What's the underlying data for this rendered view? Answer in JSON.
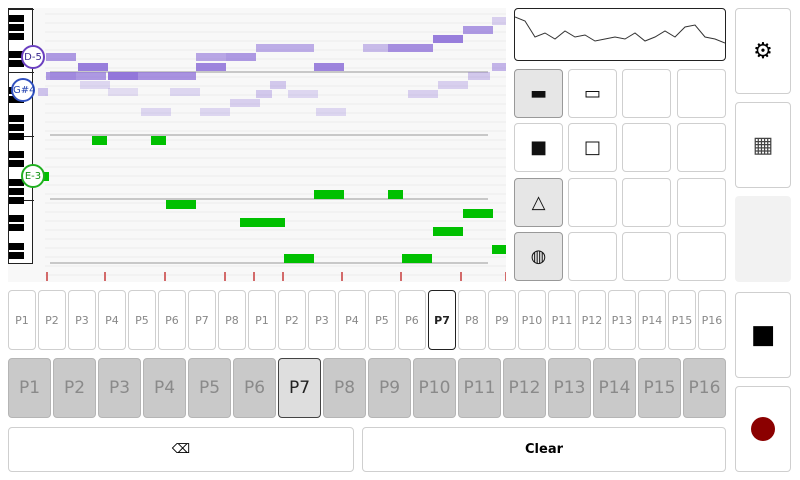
{
  "note_labels": {
    "d5": "D-5",
    "gsharp4": "G#4",
    "e3": "E-3"
  },
  "small_patterns": [
    "P1",
    "P2",
    "P3",
    "P4",
    "P5",
    "P6",
    "P7",
    "P8",
    "P1",
    "P2",
    "P3",
    "P4",
    "P5",
    "P6",
    "P7",
    "P8",
    "P9",
    "P10",
    "P11",
    "P12",
    "P13",
    "P14",
    "P15",
    "P16"
  ],
  "small_active_index": 14,
  "big_patterns": [
    "P1",
    "P2",
    "P3",
    "P4",
    "P5",
    "P6",
    "P7",
    "P8",
    "P9",
    "P10",
    "P11",
    "P12",
    "P13",
    "P14",
    "P15",
    "P16"
  ],
  "big_active_index": 6,
  "backspace_label": "⌫",
  "clear_label": "Clear",
  "tools": {
    "rect_filled": "▬",
    "rect_outline": "▭",
    "square_filled": "■",
    "square_outline": "□",
    "triangle": "△",
    "circle": "◍"
  },
  "side": {
    "settings_icon": "⚙",
    "grid_icon": "▦",
    "stop_icon": "■"
  },
  "colors": {
    "note_green": "#00c000",
    "ghost_purple": "#8d70d8",
    "record_red": "#8b0000",
    "marker_red": "#d36a6a"
  }
}
